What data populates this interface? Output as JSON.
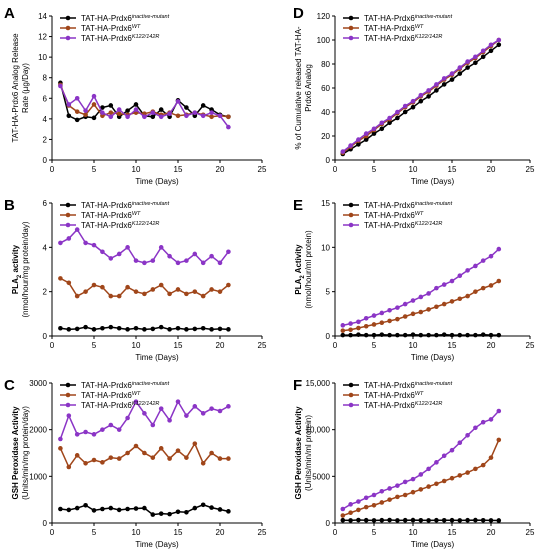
{
  "colors": {
    "inactive": "#000000",
    "wt": "#a0461a",
    "k122": "#8b35c6"
  },
  "chart_data": [
    {
      "letter": "A",
      "type": "line",
      "xlabel": "Time (Days)",
      "ylabel": [
        "TAT-HA-Prdx6 Analog Release",
        "Rate (µg/Day)"
      ],
      "xlim": [
        0,
        25
      ],
      "ylim": [
        0,
        14
      ],
      "xticks": [
        "0",
        "5",
        "10",
        "15",
        "20",
        "25"
      ],
      "yticks": [
        "0",
        "2",
        "4",
        "6",
        "8",
        "10",
        "12",
        "14"
      ],
      "legend_position": "top-left",
      "series": [
        {
          "key": "inactive",
          "name_base": "TAT-HA-Prdx6",
          "name_sup": "inactive-mutant",
          "x": [
            1,
            2,
            3,
            4,
            5,
            6,
            7,
            8,
            9,
            10,
            11,
            12,
            13,
            14,
            15,
            16,
            17,
            18,
            19,
            20,
            21
          ],
          "y": [
            7.5,
            4.3,
            3.9,
            4.2,
            4.1,
            5.1,
            5.3,
            4.2,
            4.8,
            5.4,
            4.3,
            4.2,
            4.9,
            4.2,
            5.8,
            5.1,
            4.3,
            5.3,
            4.9,
            4.4,
            4.2
          ]
        },
        {
          "key": "wt",
          "name_base": "TAT-HA-Prdx6",
          "name_sup": "WT",
          "x": [
            1,
            2,
            3,
            4,
            5,
            6,
            7,
            8,
            9,
            10,
            11,
            12,
            13,
            14,
            15,
            16,
            17,
            18,
            19,
            20,
            21
          ],
          "y": [
            7.3,
            5.3,
            4.7,
            4.4,
            5.4,
            4.3,
            4.6,
            4.5,
            4.4,
            4.6,
            4.5,
            4.7,
            4.4,
            4.6,
            4.3,
            4.4,
            4.6,
            4.4,
            4.2,
            4.3,
            4.2
          ]
        },
        {
          "key": "k122",
          "name_base": "TAT-HA-Prdx6",
          "name_sup": "K122/142R",
          "x": [
            1,
            2,
            3,
            4,
            5,
            6,
            7,
            8,
            9,
            10,
            11,
            12,
            13,
            14,
            15,
            16,
            17,
            18,
            19,
            20,
            21
          ],
          "y": [
            7.2,
            5.4,
            6.0,
            4.8,
            6.2,
            4.6,
            4.2,
            4.9,
            4.2,
            4.9,
            4.2,
            4.6,
            4.2,
            4.5,
            5.7,
            4.3,
            4.6,
            4.3,
            4.6,
            4.3,
            3.2
          ]
        }
      ]
    },
    {
      "letter": "B",
      "type": "line",
      "xlabel": "Time (Days)",
      "ylabel_lines": [
        {
          "pre": "PLA",
          "sub": "2",
          "post": " activity",
          "bold": true
        },
        {
          "pre": "(nmol/hour/mg protein/day)",
          "sub": "",
          "post": "",
          "bold": false
        }
      ],
      "xlim": [
        0,
        25
      ],
      "ylim": [
        0,
        6
      ],
      "xticks": [
        "0",
        "5",
        "10",
        "15",
        "20",
        "25"
      ],
      "yticks": [
        "0",
        "2",
        "4",
        "6"
      ],
      "legend_position": "top-left",
      "series": [
        {
          "key": "inactive",
          "name_base": "TAT-HA-Prdx6",
          "name_sup": "inactive-mutant",
          "x": [
            1,
            2,
            3,
            4,
            5,
            6,
            7,
            8,
            9,
            10,
            11,
            12,
            13,
            14,
            15,
            16,
            17,
            18,
            19,
            20,
            21
          ],
          "y": [
            0.35,
            0.3,
            0.32,
            0.4,
            0.3,
            0.35,
            0.4,
            0.35,
            0.3,
            0.35,
            0.3,
            0.32,
            0.4,
            0.3,
            0.35,
            0.3,
            0.32,
            0.35,
            0.3,
            0.32,
            0.3
          ]
        },
        {
          "key": "wt",
          "name_base": "TAT-HA-Prdx6",
          "name_sup": "WT",
          "x": [
            1,
            2,
            3,
            4,
            5,
            6,
            7,
            8,
            9,
            10,
            11,
            12,
            13,
            14,
            15,
            16,
            17,
            18,
            19,
            20,
            21
          ],
          "y": [
            2.6,
            2.4,
            1.8,
            2.0,
            2.3,
            2.2,
            1.8,
            1.8,
            2.2,
            2.0,
            1.9,
            2.1,
            2.3,
            1.9,
            2.1,
            1.9,
            2.0,
            1.8,
            2.1,
            2.0,
            2.3
          ]
        },
        {
          "key": "k122",
          "name_base": "TAT-HA-Prdx6",
          "name_sup": "K122/142R",
          "x": [
            1,
            2,
            3,
            4,
            5,
            6,
            7,
            8,
            9,
            10,
            11,
            12,
            13,
            14,
            15,
            16,
            17,
            18,
            19,
            20,
            21
          ],
          "y": [
            4.2,
            4.4,
            4.8,
            4.2,
            4.1,
            3.8,
            3.5,
            3.7,
            4.0,
            3.4,
            3.3,
            3.4,
            4.0,
            3.6,
            3.3,
            3.4,
            3.7,
            3.3,
            3.6,
            3.3,
            3.8
          ]
        }
      ]
    },
    {
      "letter": "C",
      "type": "line",
      "xlabel": "Time (Days)",
      "ylabel": [
        "GSH Peroxidase Activity",
        "(Units/min/mg protein/day)"
      ],
      "ylabel_bold_first": true,
      "xlim": [
        0,
        25
      ],
      "ylim": [
        0,
        3000
      ],
      "xticks": [
        "0",
        "5",
        "10",
        "15",
        "20",
        "25"
      ],
      "yticks": [
        "0",
        "1000",
        "2000",
        "3000"
      ],
      "legend_position": "top-left",
      "series": [
        {
          "key": "inactive",
          "name_base": "TAT-HA-Prdx6",
          "name_sup": "inactive-mutant",
          "x": [
            1,
            2,
            3,
            4,
            5,
            6,
            7,
            8,
            9,
            10,
            11,
            12,
            13,
            14,
            15,
            16,
            17,
            18,
            19,
            20,
            21
          ],
          "y": [
            300,
            280,
            320,
            380,
            270,
            300,
            320,
            280,
            300,
            310,
            320,
            180,
            200,
            190,
            240,
            230,
            320,
            390,
            330,
            290,
            250
          ]
        },
        {
          "key": "wt",
          "name_base": "TAT-HA-Prdx6",
          "name_sup": "WT",
          "x": [
            1,
            2,
            3,
            4,
            5,
            6,
            7,
            8,
            9,
            10,
            11,
            12,
            13,
            14,
            15,
            16,
            17,
            18,
            19,
            20,
            21
          ],
          "y": [
            1600,
            1200,
            1450,
            1280,
            1350,
            1300,
            1400,
            1380,
            1500,
            1650,
            1500,
            1400,
            1600,
            1380,
            1550,
            1400,
            1700,
            1280,
            1500,
            1380,
            1380
          ]
        },
        {
          "key": "k122",
          "name_base": "TAT-HA-Prdx6",
          "name_sup": "K122/142R",
          "x": [
            1,
            2,
            3,
            4,
            5,
            6,
            7,
            8,
            9,
            10,
            11,
            12,
            13,
            14,
            15,
            16,
            17,
            18,
            19,
            20,
            21
          ],
          "y": [
            1800,
            2300,
            1900,
            1950,
            1900,
            2000,
            2100,
            2000,
            2250,
            2600,
            2350,
            2100,
            2450,
            2200,
            2600,
            2300,
            2500,
            2350,
            2450,
            2400,
            2500
          ]
        }
      ]
    },
    {
      "letter": "D",
      "type": "line",
      "xlabel": "Time (Days)",
      "ylabel": [
        "% of Cumulative released TAT-HA-",
        "Prdx6 Analog"
      ],
      "xlim": [
        0,
        25
      ],
      "ylim": [
        0,
        120
      ],
      "xticks": [
        "0",
        "5",
        "10",
        "15",
        "20",
        "25"
      ],
      "yticks": [
        "0",
        "20",
        "40",
        "60",
        "80",
        "100",
        "120"
      ],
      "legend_position": "top-left",
      "series": [
        {
          "key": "inactive",
          "name_base": "TAT-HA-Prdx6",
          "name_sup": "inactive-mutant",
          "x": [
            1,
            2,
            3,
            4,
            5,
            6,
            7,
            8,
            9,
            10,
            11,
            12,
            13,
            14,
            15,
            16,
            17,
            18,
            19,
            20,
            21
          ],
          "y": [
            5,
            9,
            13,
            17,
            22,
            26,
            31,
            35,
            40,
            44,
            49,
            53,
            58,
            63,
            67,
            72,
            77,
            81,
            86,
            91,
            96
          ]
        },
        {
          "key": "wt",
          "name_base": "TAT-HA-Prdx6",
          "name_sup": "WT",
          "x": [
            1,
            2,
            3,
            4,
            5,
            6,
            7,
            8,
            9,
            10,
            11,
            12,
            13,
            14,
            15,
            16,
            17,
            18,
            19,
            20,
            21
          ],
          "y": [
            6,
            11,
            16,
            20,
            25,
            30,
            34,
            39,
            44,
            48,
            53,
            57,
            62,
            67,
            71,
            76,
            81,
            85,
            90,
            95,
            100
          ]
        },
        {
          "key": "k122",
          "name_base": "TAT-HA-Prdx6",
          "name_sup": "K122/142R",
          "x": [
            1,
            2,
            3,
            4,
            5,
            6,
            7,
            8,
            9,
            10,
            11,
            12,
            13,
            14,
            15,
            16,
            17,
            18,
            19,
            20,
            21
          ],
          "y": [
            7,
            12,
            17,
            22,
            26,
            31,
            35,
            40,
            45,
            49,
            54,
            58,
            63,
            68,
            72,
            77,
            82,
            86,
            91,
            96,
            100
          ]
        }
      ]
    },
    {
      "letter": "E",
      "type": "line",
      "xlabel": "Time (Days)",
      "ylabel_lines": [
        {
          "pre": "PLA",
          "sub": "2",
          "post": " Activity",
          "bold": true
        },
        {
          "pre": "(nmol/hour/ml protein)",
          "sub": "",
          "post": "",
          "bold": false
        }
      ],
      "xlim": [
        0,
        25
      ],
      "ylim": [
        0,
        15
      ],
      "xticks": [
        "0",
        "5",
        "10",
        "15",
        "20",
        "25"
      ],
      "yticks": [
        "0",
        "5",
        "10",
        "15"
      ],
      "legend_position": "top-left",
      "series": [
        {
          "key": "inactive",
          "name_base": "TAT-HA-Prdx6",
          "name_sup": "inactive-mutant",
          "x": [
            1,
            2,
            3,
            4,
            5,
            6,
            7,
            8,
            9,
            10,
            11,
            12,
            13,
            14,
            15,
            16,
            17,
            18,
            19,
            20,
            21
          ],
          "y": [
            0.1,
            0.1,
            0.15,
            0.1,
            0.1,
            0.15,
            0.1,
            0.1,
            0.1,
            0.15,
            0.1,
            0.1,
            0.1,
            0.15,
            0.1,
            0.1,
            0.1,
            0.1,
            0.15,
            0.1,
            0.1
          ]
        },
        {
          "key": "wt",
          "name_base": "TAT-HA-Prdx6",
          "name_sup": "WT",
          "x": [
            1,
            2,
            3,
            4,
            5,
            6,
            7,
            8,
            9,
            10,
            11,
            12,
            13,
            14,
            15,
            16,
            17,
            18,
            19,
            20,
            21
          ],
          "y": [
            0.6,
            0.7,
            0.9,
            1.1,
            1.3,
            1.5,
            1.7,
            1.9,
            2.2,
            2.5,
            2.7,
            3.0,
            3.3,
            3.6,
            3.9,
            4.2,
            4.5,
            5.0,
            5.4,
            5.7,
            6.2
          ]
        },
        {
          "key": "k122",
          "name_base": "TAT-HA-Prdx6",
          "name_sup": "K122/142R",
          "x": [
            1,
            2,
            3,
            4,
            5,
            6,
            7,
            8,
            9,
            10,
            11,
            12,
            13,
            14,
            15,
            16,
            17,
            18,
            19,
            20,
            21
          ],
          "y": [
            1.2,
            1.4,
            1.6,
            2.0,
            2.3,
            2.6,
            2.9,
            3.2,
            3.6,
            4.0,
            4.4,
            4.8,
            5.4,
            5.8,
            6.2,
            6.8,
            7.4,
            7.9,
            8.5,
            9.0,
            9.8
          ]
        }
      ]
    },
    {
      "letter": "F",
      "type": "line",
      "xlabel": "Time (Days)",
      "ylabel": [
        "GSH Peroxidase Activity",
        "(Units/min/ml protein)"
      ],
      "ylabel_bold_first": true,
      "xlim": [
        0,
        25
      ],
      "ylim": [
        0,
        15000
      ],
      "xticks": [
        "0",
        "5",
        "10",
        "15",
        "20",
        "25"
      ],
      "yticks": [
        "0",
        "5000",
        "10,000",
        "15,000"
      ],
      "legend_position": "top-left",
      "series": [
        {
          "key": "inactive",
          "name_base": "TAT-HA-Prdx6",
          "name_sup": "inactive-mutant",
          "x": [
            1,
            2,
            3,
            4,
            5,
            6,
            7,
            8,
            9,
            10,
            11,
            12,
            13,
            14,
            15,
            16,
            17,
            18,
            19,
            20,
            21
          ],
          "y": [
            300,
            280,
            320,
            300,
            280,
            300,
            320,
            280,
            300,
            310,
            290,
            280,
            300,
            290,
            300,
            280,
            300,
            310,
            290,
            280,
            270
          ]
        },
        {
          "key": "wt",
          "name_base": "TAT-HA-Prdx6",
          "name_sup": "WT",
          "x": [
            1,
            2,
            3,
            4,
            5,
            6,
            7,
            8,
            9,
            10,
            11,
            12,
            13,
            14,
            15,
            16,
            17,
            18,
            19,
            20,
            21
          ],
          "y": [
            800,
            1100,
            1400,
            1700,
            1900,
            2200,
            2500,
            2800,
            3000,
            3300,
            3600,
            3900,
            4200,
            4500,
            4800,
            5100,
            5400,
            5800,
            6200,
            7000,
            8900
          ]
        },
        {
          "key": "k122",
          "name_base": "TAT-HA-Prdx6",
          "name_sup": "K122/142R",
          "x": [
            1,
            2,
            3,
            4,
            5,
            6,
            7,
            8,
            9,
            10,
            11,
            12,
            13,
            14,
            15,
            16,
            17,
            18,
            19,
            20,
            21
          ],
          "y": [
            1500,
            2000,
            2300,
            2700,
            3000,
            3400,
            3700,
            4000,
            4400,
            4700,
            5200,
            5800,
            6500,
            7200,
            7800,
            8600,
            9400,
            10200,
            10800,
            11100,
            12000
          ]
        }
      ]
    }
  ]
}
